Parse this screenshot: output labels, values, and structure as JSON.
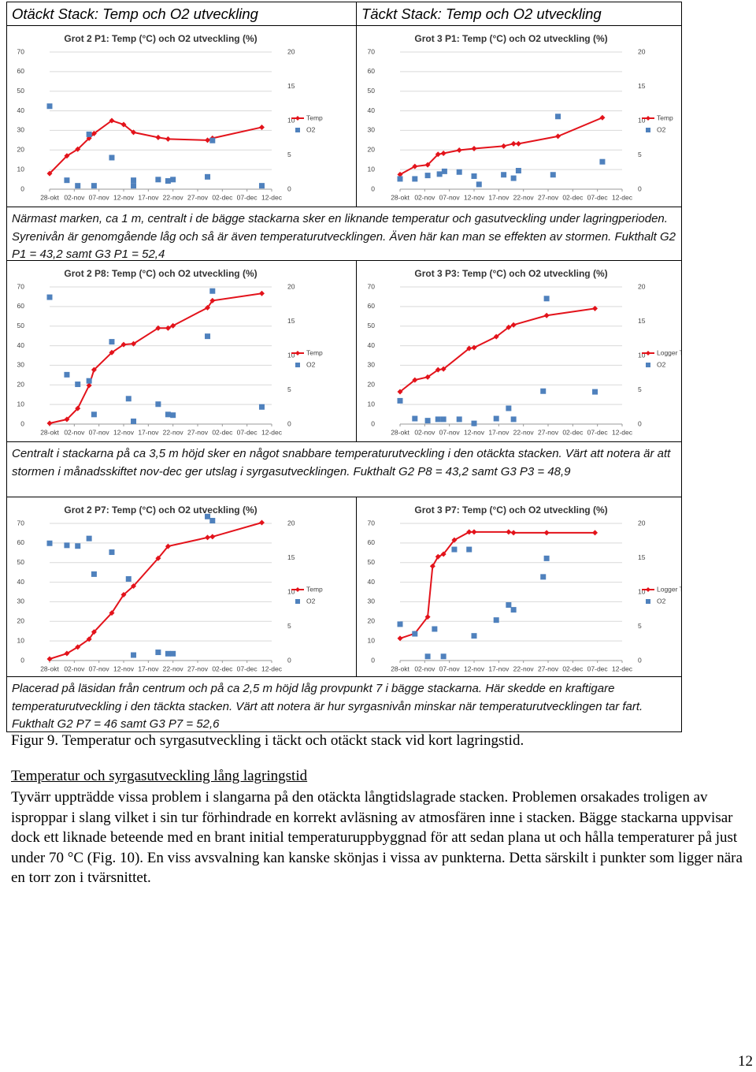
{
  "header": {
    "left": "Otäckt Stack: Temp och O2 utveckling",
    "right": "Täckt Stack: Temp och O2 utveckling"
  },
  "chart_data": [
    {
      "type": "line",
      "title": "Grot 2 P1: Temp (°C) och O2 utveckling (%)",
      "grid": true,
      "xlim": [
        0,
        45
      ],
      "xticks": [
        {
          "value": 0,
          "label": "28-okt"
        },
        {
          "value": 5,
          "label": "02-nov"
        },
        {
          "value": 10,
          "label": "07-nov"
        },
        {
          "value": 15,
          "label": "12-nov"
        },
        {
          "value": 20,
          "label": "17-nov"
        },
        {
          "value": 25,
          "label": "22-nov"
        },
        {
          "value": 30,
          "label": "27-nov"
        },
        {
          "value": 35,
          "label": "02-dec"
        },
        {
          "value": 40,
          "label": "07-dec"
        },
        {
          "value": 45,
          "label": "12-dec"
        }
      ],
      "ylim": [
        0,
        70
      ],
      "yticks": [
        0,
        10,
        20,
        30,
        40,
        50,
        60,
        70
      ],
      "y2lim": [
        0,
        20
      ],
      "y2ticks": [
        0,
        5,
        10,
        15,
        20
      ],
      "series": [
        {
          "name": "Temp",
          "color": "#e3131b",
          "marker": "diamond",
          "line": true,
          "x": [
            0,
            3.5,
            5.7,
            8,
            9,
            12.6,
            15,
            17,
            22,
            24,
            32,
            33,
            43
          ],
          "values": [
            8,
            17,
            20.4,
            26,
            28.4,
            35,
            33,
            29,
            26.4,
            25.6,
            25,
            26,
            31.6
          ]
        },
        {
          "name": "O2",
          "color": "#4f81bd",
          "marker": "square",
          "line": false,
          "axis": "y2",
          "x": [
            0,
            3.5,
            5.7,
            8,
            9,
            12.6,
            17,
            17,
            22,
            24,
            25,
            32,
            33,
            43
          ],
          "values": [
            12.1,
            1.3,
            0.5,
            8,
            0.5,
            4.6,
            1.3,
            0.5,
            1.4,
            1.2,
            1.4,
            1.8,
            7.1,
            0.5
          ]
        }
      ]
    },
    {
      "type": "line",
      "title": "Grot 3 P1: Temp (°C) och O2 utveckling (%)",
      "grid": true,
      "xlim": [
        0,
        45
      ],
      "xticks": [
        {
          "value": 0,
          "label": "28-okt"
        },
        {
          "value": 5,
          "label": "02-nov"
        },
        {
          "value": 10,
          "label": "07-nov"
        },
        {
          "value": 15,
          "label": "12-nov"
        },
        {
          "value": 20,
          "label": "17-nov"
        },
        {
          "value": 25,
          "label": "22-nov"
        },
        {
          "value": 30,
          "label": "27-nov"
        },
        {
          "value": 35,
          "label": "02-dec"
        },
        {
          "value": 40,
          "label": "07-dec"
        },
        {
          "value": 45,
          "label": "12-dec"
        }
      ],
      "ylim": [
        0,
        70
      ],
      "yticks": [
        0,
        10,
        20,
        30,
        40,
        50,
        60,
        70
      ],
      "y2lim": [
        0,
        20
      ],
      "y2ticks": [
        0,
        5,
        10,
        15,
        20
      ],
      "series": [
        {
          "name": "Temp",
          "color": "#e3131b",
          "marker": "diamond",
          "line": true,
          "x": [
            0,
            3,
            5.6,
            7.7,
            8.8,
            12,
            15,
            21,
            23,
            24,
            32,
            41
          ],
          "values": [
            7.5,
            11.6,
            12.4,
            17.8,
            18.3,
            19.9,
            20.7,
            22,
            23.2,
            23.2,
            27,
            36.5
          ]
        },
        {
          "name": "O2",
          "color": "#4f81bd",
          "marker": "square",
          "line": false,
          "axis": "y2",
          "x": [
            0,
            3,
            5.6,
            8,
            9,
            12,
            15,
            16,
            21,
            23,
            24,
            31,
            32,
            41
          ],
          "values": [
            1.5,
            1.5,
            2,
            2.2,
            2.6,
            2.5,
            1.9,
            0.7,
            2.1,
            1.6,
            2.7,
            2.1,
            10.6,
            4
          ]
        }
      ]
    },
    {
      "type": "line",
      "title": "Grot 2 P8: Temp (°C) och O2 utveckling (%)",
      "grid": true,
      "xlim": [
        0,
        45
      ],
      "xticks": [
        {
          "value": 0,
          "label": "28-okt"
        },
        {
          "value": 5,
          "label": "02-nov"
        },
        {
          "value": 10,
          "label": "07-nov"
        },
        {
          "value": 15,
          "label": "12-nov"
        },
        {
          "value": 20,
          "label": "17-nov"
        },
        {
          "value": 25,
          "label": "22-nov"
        },
        {
          "value": 30,
          "label": "27-nov"
        },
        {
          "value": 35,
          "label": "02-dec"
        },
        {
          "value": 40,
          "label": "07-dec"
        },
        {
          "value": 45,
          "label": "12-dec"
        }
      ],
      "ylim": [
        0,
        70
      ],
      "yticks": [
        0,
        10,
        20,
        30,
        40,
        50,
        60,
        70
      ],
      "y2lim": [
        0,
        20
      ],
      "y2ticks": [
        0,
        5,
        10,
        15,
        20
      ],
      "series": [
        {
          "name": "Temp",
          "color": "#e3131b",
          "marker": "diamond",
          "line": true,
          "x": [
            0,
            3.5,
            5.7,
            8,
            9,
            12.6,
            15,
            17,
            22,
            24,
            25,
            32,
            33,
            43
          ],
          "values": [
            0.4,
            2.4,
            8,
            19.7,
            27.7,
            36.5,
            40.6,
            41,
            49,
            49,
            50.2,
            59.4,
            63,
            66.7
          ]
        },
        {
          "name": "O2",
          "color": "#4f81bd",
          "marker": "square",
          "line": false,
          "axis": "y2",
          "x": [
            0,
            3.5,
            5.7,
            8,
            9,
            12.6,
            16,
            17,
            22,
            24,
            25,
            32,
            33,
            43
          ],
          "values": [
            18.5,
            7.2,
            5.8,
            6.3,
            1.4,
            12,
            3.7,
            0.4,
            2.9,
            1.4,
            1.3,
            12.8,
            19.4,
            2.5
          ]
        }
      ]
    },
    {
      "type": "line",
      "title": "Grot 3 P3: Temp (°C) och O2 utveckling (%)",
      "grid": true,
      "xlim": [
        0,
        45
      ],
      "xticks": [
        {
          "value": 0,
          "label": "28-okt"
        },
        {
          "value": 5,
          "label": "02-nov"
        },
        {
          "value": 10,
          "label": "07-nov"
        },
        {
          "value": 15,
          "label": "12-nov"
        },
        {
          "value": 20,
          "label": "17-nov"
        },
        {
          "value": 25,
          "label": "22-nov"
        },
        {
          "value": 30,
          "label": "27-nov"
        },
        {
          "value": 35,
          "label": "02-dec"
        },
        {
          "value": 40,
          "label": "07-dec"
        },
        {
          "value": 45,
          "label": "12-dec"
        }
      ],
      "ylim": [
        0,
        70
      ],
      "yticks": [
        0,
        10,
        20,
        30,
        40,
        50,
        60,
        70
      ],
      "y2lim": [
        0,
        20
      ],
      "y2ticks": [
        0,
        5,
        10,
        15,
        20
      ],
      "series": [
        {
          "name": "Logger Temp",
          "color": "#e3131b",
          "marker": "diamond",
          "line": true,
          "x": [
            0,
            3,
            5.6,
            7.7,
            8.8,
            14,
            15,
            19.5,
            22,
            23,
            29.7,
            39.5
          ],
          "values": [
            16.5,
            22.5,
            24,
            27.7,
            28.1,
            38.6,
            39,
            44.6,
            49.4,
            50.6,
            55.4,
            59
          ]
        },
        {
          "name": "O2",
          "color": "#4f81bd",
          "marker": "square",
          "line": false,
          "axis": "y2",
          "x": [
            0,
            3,
            5.6,
            7.7,
            8.8,
            12,
            15,
            19.5,
            22,
            23,
            29,
            29.7,
            39.5
          ],
          "values": [
            3.4,
            0.8,
            0.5,
            0.7,
            0.7,
            0.7,
            0.1,
            0.8,
            2.3,
            0.7,
            4.8,
            18.3,
            4.7
          ]
        }
      ]
    },
    {
      "type": "line",
      "title": "Grot 2 P7: Temp (°C) och O2 utveckling (%)",
      "grid": true,
      "xlim": [
        0,
        45
      ],
      "xticks": [
        {
          "value": 0,
          "label": "28-okt"
        },
        {
          "value": 5,
          "label": "02-nov"
        },
        {
          "value": 10,
          "label": "07-nov"
        },
        {
          "value": 15,
          "label": "12-nov"
        },
        {
          "value": 20,
          "label": "17-nov"
        },
        {
          "value": 25,
          "label": "22-nov"
        },
        {
          "value": 30,
          "label": "27-nov"
        },
        {
          "value": 35,
          "label": "02-dec"
        },
        {
          "value": 40,
          "label": "07-dec"
        },
        {
          "value": 45,
          "label": "12-dec"
        }
      ],
      "ylim": [
        0,
        70
      ],
      "yticks": [
        0,
        10,
        20,
        30,
        40,
        50,
        60,
        70
      ],
      "y2lim": [
        0,
        20
      ],
      "y2ticks": [
        0,
        5,
        10,
        15,
        20
      ],
      "series": [
        {
          "name": "Temp",
          "color": "#e3131b",
          "marker": "diamond",
          "line": true,
          "x": [
            0,
            3.5,
            5.7,
            8,
            9,
            12.6,
            15,
            17,
            22,
            24,
            32,
            33,
            43
          ],
          "values": [
            0.8,
            3.6,
            6.9,
            10.9,
            14.6,
            24.3,
            33.6,
            38,
            52.2,
            58.3,
            62.8,
            63.2,
            70.4
          ]
        },
        {
          "name": "O2",
          "color": "#4f81bd",
          "marker": "square",
          "line": false,
          "axis": "y2",
          "x": [
            0,
            3.5,
            5.7,
            8,
            9,
            12.6,
            16,
            17,
            22,
            24,
            25,
            32,
            33
          ],
          "values": [
            17.1,
            16.8,
            16.7,
            17.8,
            12.6,
            15.8,
            11.9,
            0.8,
            1.2,
            1,
            1,
            21,
            20.4
          ]
        }
      ]
    },
    {
      "type": "line",
      "title": "Grot 3 P7: Temp (°C) och O2 utveckling (%)",
      "grid": true,
      "xlim": [
        0,
        45
      ],
      "xticks": [
        {
          "value": 0,
          "label": "28-okt"
        },
        {
          "value": 5,
          "label": "02-nov"
        },
        {
          "value": 10,
          "label": "07-nov"
        },
        {
          "value": 15,
          "label": "12-nov"
        },
        {
          "value": 20,
          "label": "17-nov"
        },
        {
          "value": 25,
          "label": "22-nov"
        },
        {
          "value": 30,
          "label": "27-nov"
        },
        {
          "value": 35,
          "label": "02-dec"
        },
        {
          "value": 40,
          "label": "07-dec"
        },
        {
          "value": 45,
          "label": "12-dec"
        }
      ],
      "ylim": [
        0,
        70
      ],
      "yticks": [
        0,
        10,
        20,
        30,
        40,
        50,
        60,
        70
      ],
      "y2lim": [
        0,
        20
      ],
      "y2ticks": [
        0,
        5,
        10,
        15,
        20
      ],
      "series": [
        {
          "name": "Logger Temp",
          "color": "#e3131b",
          "marker": "diamond",
          "line": true,
          "x": [
            0,
            3,
            5.6,
            6.6,
            7.7,
            8.8,
            11,
            14,
            15,
            22,
            23,
            29.7,
            39.5
          ],
          "values": [
            11.3,
            13.8,
            22.3,
            48.2,
            53,
            54.3,
            61.5,
            65.6,
            65.6,
            65.6,
            65.2,
            65.2,
            65.2
          ]
        },
        {
          "name": "O2",
          "color": "#4f81bd",
          "marker": "square",
          "line": false,
          "axis": "y2",
          "x": [
            0,
            3,
            5.6,
            7,
            8.8,
            11,
            14,
            15,
            19.5,
            22,
            23,
            29,
            29.7
          ],
          "values": [
            5.3,
            3.9,
            0.6,
            4.6,
            0.6,
            16.2,
            16.2,
            3.6,
            5.9,
            8.1,
            7.4,
            12.2,
            14.9
          ]
        }
      ]
    }
  ],
  "captions": [
    "Närmast marken, ca 1 m, centralt i de bägge stackarna sker en liknande temperatur och gasutveckling under lagringperioden. Syrenivån är genomgående låg och så är även temperaturutvecklingen. Även här kan man se effekten av stormen. Fukthalt G2 P1 = 43,2 samt G3 P1 = 52,4",
    "Centralt i stackarna på ca 3,5 m höjd sker en något snabbare temperaturutveckling i den otäckta stacken. Värt att notera är att stormen i månadsskiftet nov-dec ger utslag i syrgasutvecklingen. Fukthalt G2 P8 = 43,2 samt G3 P3 = 48,9",
    "Placerad på läsidan från centrum och på ca 2,5 m höjd låg provpunkt 7 i bägge stackarna. Här skedde en kraftigare temperaturutveckling i den täckta stacken. Värt att notera är hur syrgasnivån minskar när temperaturutvecklingen tar fart. Fukthalt G2 P7 = 46 samt G3 P7 = 52,6"
  ],
  "figure_caption": "Figur 9. Temperatur och syrgasutveckling i täckt och otäckt stack vid kort lagringstid.",
  "section_title": "Temperatur och syrgasutveckling lång lagringstid",
  "paragraph": "Tyvärr uppträdde vissa problem i slangarna på den otäckta långtidslagrade stacken. Problemen orsakades troligen av isproppar i slang vilket i sin tur förhindrade en korrekt avläsning av atmosfären inne i stacken. Bägge stackarna uppvisar dock ett liknade beteende med en brant initial temperaturuppbyggnad för att sedan plana ut och hålla temperaturer på just under 70 °C (Fig. 10). En viss avsvalning kan kanske skönjas i vissa av punkterna. Detta särskilt i punkter som ligger nära en torr zon i tvärsnittet.",
  "page_number": "12"
}
